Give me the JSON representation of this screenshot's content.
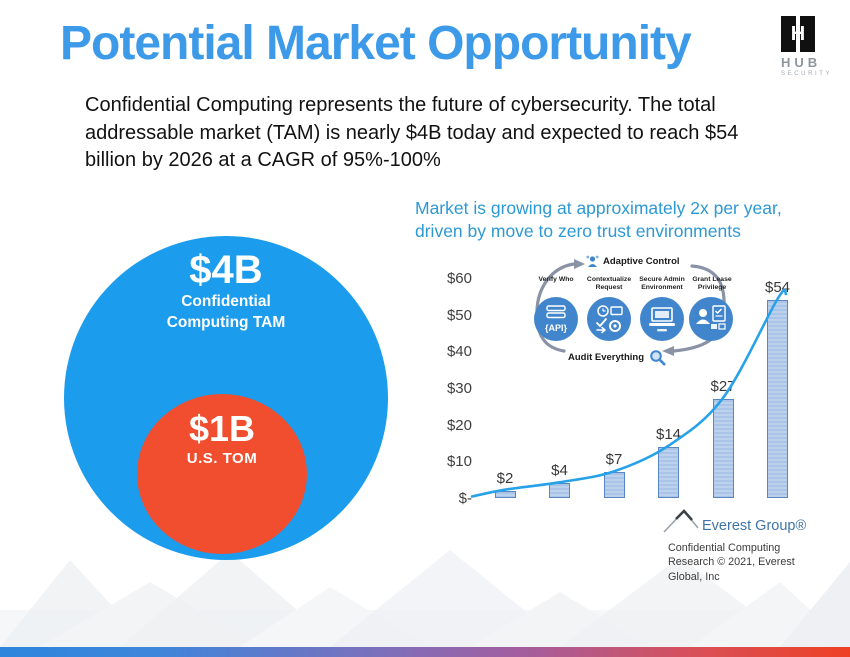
{
  "title": "Potential Market Opportunity",
  "theme": {
    "title_color": "#3d9ae8",
    "note_color": "#2c99d5",
    "footer_gradient": [
      "#2d85dc",
      "#7d6fbb",
      "#ee4124"
    ]
  },
  "hub_logo": {
    "name": "HUB",
    "tagline": "SECURITY"
  },
  "intro": "Confidential Computing represents the future of cybersecurity. The total addressable market (TAM) is nearly $4B today and expected to reach $54 billion by 2026 at a CAGR of 95%-100%",
  "venn": {
    "outer_value": "$4B",
    "outer_label": "Confidential Computing TAM",
    "outer_color": "#1b9cec",
    "inner_value": "$1B",
    "inner_label": "U.S. TOM",
    "inner_color": "#f04e2f"
  },
  "market_note": "Market is growing at approximately 2x per year, driven by move to zero trust environments",
  "chart_data": {
    "type": "bar",
    "title": "",
    "values": [
      2,
      4,
      7,
      14,
      27,
      54
    ],
    "data_labels": [
      "$2",
      "$4",
      "$7",
      "$14",
      "$27",
      "$54"
    ],
    "y_tick_labels": [
      "$60",
      "$50",
      "$40",
      "$30",
      "$20",
      "$10",
      "$-"
    ],
    "y_tick_values": [
      60,
      50,
      40,
      30,
      20,
      10,
      0
    ],
    "ylim": [
      0,
      60
    ],
    "grid": false,
    "trend_line": true,
    "bar_color": "#a9c4e6",
    "bar_border_color": "#5b86c4",
    "line_color": "#27a2e8"
  },
  "cycle_diagram": {
    "top_label": "Adaptive Control",
    "steps": [
      {
        "label": "Verify Who"
      },
      {
        "label": "Contextualize Request"
      },
      {
        "label": "Secure Admin Environment"
      },
      {
        "label": "Grant Lease Privilege"
      }
    ],
    "bottom_label": "Audit Everything"
  },
  "source": {
    "brand": "Everest Group®",
    "note": "Confidential Computing Research © 2021, Everest Global, Inc"
  }
}
